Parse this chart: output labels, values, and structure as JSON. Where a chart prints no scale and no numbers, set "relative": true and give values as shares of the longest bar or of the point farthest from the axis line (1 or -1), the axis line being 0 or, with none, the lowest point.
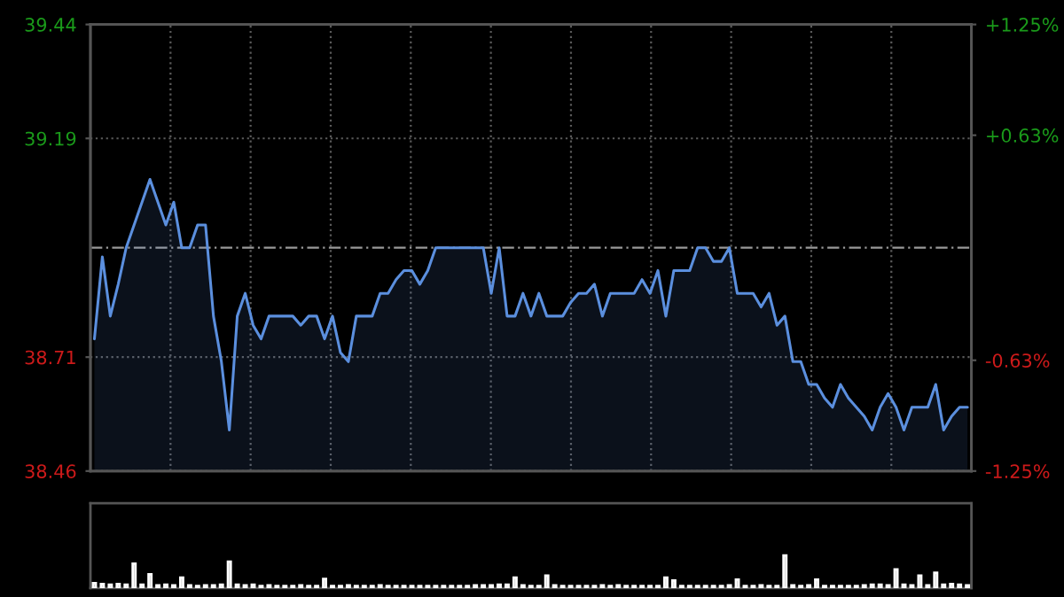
{
  "chart_data": [
    {
      "type": "area",
      "categories": [
        null,
        null,
        null,
        null,
        null,
        null,
        null,
        null,
        null,
        null,
        null,
        null,
        null,
        null,
        null,
        null,
        null,
        null,
        null,
        null,
        null,
        null,
        null,
        null,
        null,
        null,
        null,
        null,
        null,
        null,
        null,
        null,
        null,
        null,
        null,
        null,
        null,
        null,
        null,
        null,
        null,
        null,
        null,
        null,
        null,
        null,
        null,
        null,
        null,
        null,
        null,
        null,
        null,
        null,
        null,
        null,
        null,
        null,
        null,
        null,
        null,
        null,
        null,
        null,
        null,
        null,
        null,
        null,
        null,
        null,
        null,
        null,
        null,
        null,
        null,
        null,
        null,
        null,
        null,
        null,
        null,
        null,
        null,
        null,
        null,
        null,
        null,
        null,
        null,
        null,
        null,
        null,
        null,
        null,
        null,
        null,
        null,
        null,
        null,
        null,
        null,
        null,
        null,
        null,
        null,
        null,
        null,
        null,
        null,
        null,
        null
      ],
      "series": [
        {
          "color": "#5b8fde",
          "values": [
            38.75,
            38.93,
            38.8,
            38.87,
            38.95,
            39.0,
            39.05,
            39.1,
            39.05,
            39.0,
            39.05,
            38.95,
            38.95,
            39.0,
            39.0,
            38.8,
            38.7,
            38.55,
            38.8,
            38.85,
            38.78,
            38.75,
            38.8,
            38.8,
            38.8,
            38.8,
            38.78,
            38.8,
            38.8,
            38.75,
            38.8,
            38.72,
            38.7,
            38.8,
            38.8,
            38.8,
            38.85,
            38.85,
            38.88,
            38.9,
            38.9,
            38.87,
            38.9,
            38.95,
            38.95,
            38.95,
            38.95,
            38.95,
            38.95,
            38.95,
            38.85,
            38.95,
            38.8,
            38.8,
            38.85,
            38.8,
            38.85,
            38.8,
            38.8,
            38.8,
            38.83,
            38.85,
            38.85,
            38.87,
            38.8,
            38.85,
            38.85,
            38.85,
            38.85,
            38.88,
            38.85,
            38.9,
            38.8,
            38.9,
            38.9,
            38.9,
            38.95,
            38.95,
            38.92,
            38.92,
            38.95,
            38.85,
            38.85,
            38.85,
            38.82,
            38.85,
            38.78,
            38.8,
            38.7,
            38.7,
            38.65,
            38.65,
            38.62,
            38.6,
            38.65,
            38.62,
            38.6,
            38.58,
            38.55,
            38.6,
            38.63,
            38.6,
            38.55,
            38.6,
            38.6,
            38.6,
            38.65,
            38.55,
            38.58,
            38.6,
            38.6
          ]
        }
      ],
      "ylim": [
        38.46,
        39.44
      ],
      "yticks": [
        38.46,
        38.71,
        39.19,
        39.44
      ],
      "y2lim": [
        -1.25,
        1.25
      ],
      "y2ticks": [
        {
          "value": -1.25,
          "label": "-1.25%"
        },
        {
          "value": -0.63,
          "label": "-0.63%"
        },
        {
          "value": 0.63,
          "label": "+0.63%"
        },
        {
          "value": 1.25,
          "label": "+1.25%"
        }
      ],
      "ref_lines": [
        {
          "axis": "y",
          "value": 38.95,
          "color": "#999999",
          "line_style": "dashed"
        }
      ],
      "grid": true,
      "tick_labels": "y"
    },
    {
      "type": "bar",
      "relative": true,
      "color": "#8c8c8c",
      "tick_labels": false,
      "categories": [
        null,
        null,
        null,
        null,
        null,
        null,
        null,
        null,
        null,
        null,
        null,
        null,
        null,
        null,
        null,
        null,
        null,
        null,
        null,
        null,
        null,
        null,
        null,
        null,
        null,
        null,
        null,
        null,
        null,
        null,
        null,
        null,
        null,
        null,
        null,
        null,
        null,
        null,
        null,
        null,
        null,
        null,
        null,
        null,
        null,
        null,
        null,
        null,
        null,
        null,
        null,
        null,
        null,
        null,
        null,
        null,
        null,
        null,
        null,
        null,
        null,
        null,
        null,
        null,
        null,
        null,
        null,
        null,
        null,
        null,
        null,
        null,
        null,
        null,
        null,
        null,
        null,
        null,
        null,
        null,
        null,
        null,
        null,
        null,
        null,
        null,
        null,
        null,
        null,
        null,
        null,
        null,
        null,
        null,
        null,
        null,
        null,
        null,
        null,
        null,
        null,
        null,
        null,
        null,
        null,
        null,
        null,
        null,
        null,
        null,
        null
      ],
      "values": [
        0.15,
        0.12,
        0.1,
        0.12,
        0.1,
        0.75,
        0.1,
        0.42,
        0.08,
        0.1,
        0.08,
        0.32,
        0.08,
        0.06,
        0.08,
        0.08,
        0.1,
        0.81,
        0.1,
        0.08,
        0.1,
        0.06,
        0.08,
        0.06,
        0.06,
        0.06,
        0.08,
        0.06,
        0.06,
        0.28,
        0.06,
        0.06,
        0.08,
        0.06,
        0.06,
        0.06,
        0.08,
        0.06,
        0.06,
        0.06,
        0.06,
        0.06,
        0.06,
        0.06,
        0.06,
        0.06,
        0.06,
        0.06,
        0.08,
        0.08,
        0.08,
        0.1,
        0.1,
        0.32,
        0.08,
        0.06,
        0.06,
        0.38,
        0.08,
        0.06,
        0.06,
        0.06,
        0.06,
        0.06,
        0.08,
        0.06,
        0.08,
        0.06,
        0.06,
        0.06,
        0.06,
        0.06,
        0.32,
        0.23,
        0.06,
        0.06,
        0.06,
        0.06,
        0.06,
        0.06,
        0.08,
        0.26,
        0.06,
        0.06,
        0.08,
        0.06,
        0.06,
        1.0,
        0.08,
        0.06,
        0.08,
        0.26,
        0.06,
        0.06,
        0.06,
        0.06,
        0.06,
        0.08,
        0.1,
        0.1,
        0.08,
        0.57,
        0.1,
        0.08,
        0.38,
        0.08,
        0.47,
        0.1,
        0.12,
        0.1,
        0.08
      ]
    }
  ]
}
